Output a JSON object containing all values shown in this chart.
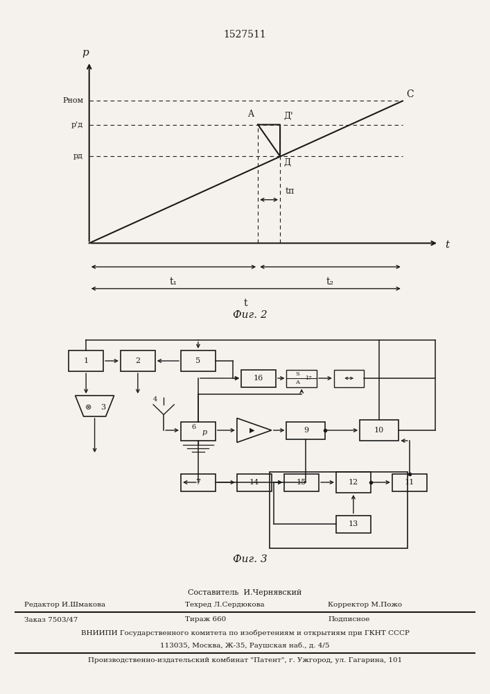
{
  "title": "1527511",
  "fig2_label": "Фиг. 2",
  "fig3_label": "Фиг. 3",
  "bg_color": "#f5f2ed",
  "line_color": "#1a1a1a",
  "footer_lines": [
    "Составитель  И.Чернявский",
    "Редактор И.Шмакова",
    "Техред Л.Сердюкова",
    "Корректор М.Пожо",
    "Заказ 7503/47",
    "Тираж 660",
    "Подписное",
    "ВНИИПИ Государственного комитета по изобретениям и открытиям при ГКНТ СССР",
    "113035, Москва, Ж-35, Раушская наб., д. 4/5",
    "Производственно-издательский комбинат \"Патент\", г. Ужгород, ул. Гагарина, 101"
  ]
}
